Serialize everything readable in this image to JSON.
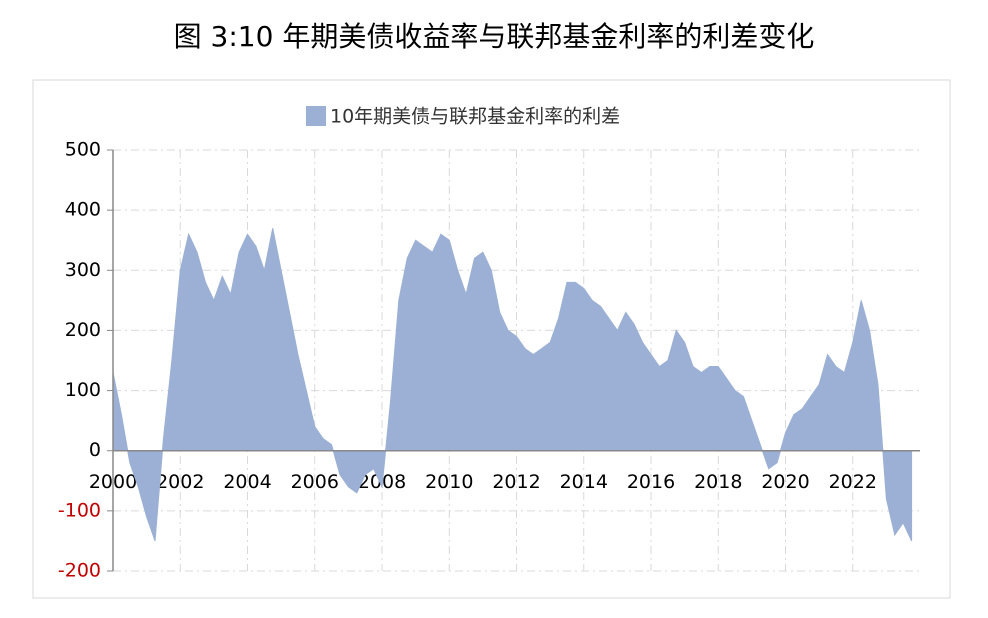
{
  "chart_data": {
    "type": "area",
    "title": "图 3:10 年期美债收益率与联邦基金利率的利差变化",
    "series": [
      {
        "name": "10年期美债与联邦基金利率的利差",
        "color": "#9bb0d4",
        "values": [
          130,
          60,
          -20,
          -60,
          -110,
          -150,
          20,
          150,
          300,
          360,
          330,
          280,
          250,
          290,
          260,
          330,
          360,
          340,
          300,
          370,
          300,
          230,
          160,
          100,
          40,
          20,
          10,
          -40,
          -60,
          -70,
          -40,
          -30,
          -60,
          80,
          250,
          320,
          350,
          340,
          330,
          360,
          350,
          300,
          260,
          320,
          330,
          300,
          230,
          200,
          190,
          170,
          160,
          170,
          180,
          220,
          280,
          280,
          270,
          250,
          240,
          220,
          200,
          230,
          210,
          180,
          160,
          140,
          150,
          200,
          180,
          140,
          130,
          140,
          140,
          120,
          100,
          90,
          50,
          10,
          -30,
          -20,
          30,
          60,
          70,
          90,
          110,
          160,
          140,
          130,
          180,
          250,
          200,
          110,
          -80,
          -140,
          -120,
          -150
        ]
      }
    ],
    "x": [
      2000,
      2000.25,
      2000.5,
      2000.75,
      2001,
      2001.25,
      2001.5,
      2001.75,
      2002,
      2002.25,
      2002.5,
      2002.75,
      2003,
      2003.25,
      2003.5,
      2003.75,
      2004,
      2004.25,
      2004.5,
      2004.75,
      2005,
      2005.25,
      2005.5,
      2005.75,
      2006,
      2006.25,
      2006.5,
      2006.75,
      2007,
      2007.25,
      2007.5,
      2007.75,
      2008,
      2008.25,
      2008.5,
      2008.75,
      2009,
      2009.25,
      2009.5,
      2009.75,
      2010,
      2010.25,
      2010.5,
      2010.75,
      2011,
      2011.25,
      2011.5,
      2011.75,
      2012,
      2012.25,
      2012.5,
      2012.75,
      2013,
      2013.25,
      2013.5,
      2013.75,
      2014,
      2014.25,
      2014.5,
      2014.75,
      2015,
      2015.25,
      2015.5,
      2015.75,
      2016,
      2016.25,
      2016.5,
      2016.75,
      2017,
      2017.25,
      2017.5,
      2017.75,
      2018,
      2018.25,
      2018.5,
      2018.75,
      2019,
      2019.25,
      2019.5,
      2019.75,
      2020,
      2020.25,
      2020.5,
      2020.75,
      2021,
      2021.25,
      2021.5,
      2021.75,
      2022,
      2022.25,
      2022.5,
      2022.75,
      2023,
      2023.25,
      2023.5,
      2023.75
    ],
    "xlim": [
      2000,
      2024
    ],
    "xticks": [
      2000,
      2002,
      2004,
      2006,
      2008,
      2010,
      2012,
      2014,
      2016,
      2018,
      2020,
      2022
    ],
    "ylim": [
      -200,
      500
    ],
    "yticks": [
      -200,
      -100,
      0,
      100,
      200,
      300,
      400,
      500
    ],
    "grid": true,
    "negative_tick_color": "#c00000",
    "legend": "top"
  }
}
